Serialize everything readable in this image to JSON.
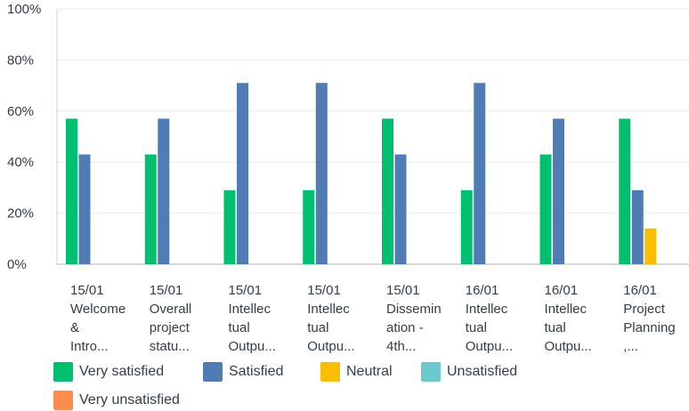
{
  "chart_data": {
    "type": "bar",
    "categories": [
      "15/01\nWelcome\n&\nIntro...",
      "15/01\nOverall\nproject\nstatu...",
      "15/01\nIntellec\ntual\nOutpu...",
      "15/01\nIntellec\ntual\nOutpu...",
      "15/01\nDissemin\nation -\n4th...",
      "16/01\nIntellec\ntual\nOutpu...",
      "16/01\nIntellec\ntual\nOutpu...",
      "16/01\nProject\nPlanning\n,..."
    ],
    "series": [
      {
        "name": "Very satisfied",
        "color": "#00bf6f",
        "values": [
          57,
          43,
          29,
          29,
          57,
          29,
          43,
          57
        ]
      },
      {
        "name": "Satisfied",
        "color": "#507cb6",
        "values": [
          43,
          57,
          71,
          71,
          43,
          71,
          57,
          29
        ]
      },
      {
        "name": "Neutral",
        "color": "#f9be00",
        "values": [
          0,
          0,
          0,
          0,
          0,
          0,
          0,
          14
        ]
      },
      {
        "name": "Unsatisfied",
        "color": "#6bc8cd",
        "values": [
          0,
          0,
          0,
          0,
          0,
          0,
          0,
          0
        ]
      },
      {
        "name": "Very unsatisfied",
        "color": "#ff8b4f",
        "values": [
          0,
          0,
          0,
          0,
          0,
          0,
          0,
          0
        ]
      }
    ],
    "yticks": [
      "0%",
      "20%",
      "40%",
      "60%",
      "80%",
      "100%"
    ],
    "ylim": [
      0,
      100
    ],
    "grid": true,
    "legend_position": "bottom"
  }
}
